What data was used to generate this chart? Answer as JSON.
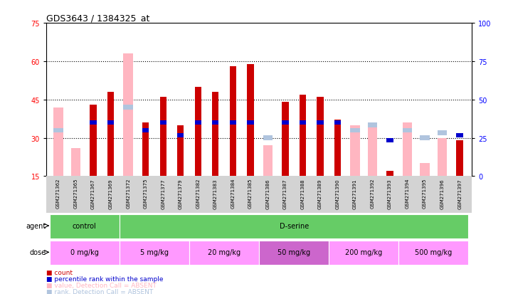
{
  "title": "GDS3643 / 1384325_at",
  "samples": [
    "GSM271362",
    "GSM271365",
    "GSM271367",
    "GSM271369",
    "GSM271372",
    "GSM271375",
    "GSM271377",
    "GSM271379",
    "GSM271382",
    "GSM271383",
    "GSM271384",
    "GSM271385",
    "GSM271386",
    "GSM271387",
    "GSM271388",
    "GSM271389",
    "GSM271390",
    "GSM271391",
    "GSM271392",
    "GSM271393",
    "GSM271394",
    "GSM271395",
    "GSM271396",
    "GSM271397"
  ],
  "count_values": [
    null,
    null,
    43,
    48,
    null,
    36,
    46,
    35,
    50,
    48,
    58,
    59,
    null,
    44,
    47,
    46,
    37,
    null,
    null,
    17,
    null,
    null,
    null,
    29
  ],
  "rank_values": [
    null,
    null,
    36,
    36,
    null,
    33,
    36,
    31,
    36,
    36,
    36,
    36,
    null,
    36,
    36,
    36,
    36,
    null,
    null,
    29,
    null,
    null,
    null,
    31
  ],
  "rank_absent": [
    33,
    null,
    null,
    null,
    42,
    null,
    null,
    null,
    null,
    null,
    null,
    null,
    30,
    null,
    null,
    null,
    null,
    33,
    35,
    null,
    33,
    30,
    32,
    null
  ],
  "value_absent": [
    42,
    26,
    null,
    null,
    63,
    null,
    null,
    null,
    null,
    null,
    null,
    null,
    27,
    null,
    null,
    null,
    null,
    35,
    36,
    null,
    36,
    20,
    30,
    null
  ],
  "ylim_left": [
    15,
    75
  ],
  "ylim_right": [
    0,
    100
  ],
  "yticks_left": [
    15,
    30,
    45,
    60,
    75
  ],
  "yticks_right": [
    0,
    25,
    50,
    75,
    100
  ],
  "count_color": "#CC0000",
  "rank_color": "#0000CC",
  "absent_value_color": "#FFB6C1",
  "absent_rank_color": "#B0C4DE",
  "agents": [
    {
      "label": "control",
      "color": "#66CC66",
      "start": 0,
      "end": 4
    },
    {
      "label": "D-serine",
      "color": "#66CC66",
      "start": 4,
      "end": 24
    }
  ],
  "doses": [
    {
      "label": "0 mg/kg",
      "color": "#FF99FF",
      "start": 0,
      "end": 4
    },
    {
      "label": "5 mg/kg",
      "color": "#FF99FF",
      "start": 4,
      "end": 8
    },
    {
      "label": "20 mg/kg",
      "color": "#FF99FF",
      "start": 8,
      "end": 12
    },
    {
      "label": "50 mg/kg",
      "color": "#CC66CC",
      "start": 12,
      "end": 16
    },
    {
      "label": "200 mg/kg",
      "color": "#FF99FF",
      "start": 16,
      "end": 20
    },
    {
      "label": "500 mg/kg",
      "color": "#FF99FF",
      "start": 20,
      "end": 24
    }
  ]
}
